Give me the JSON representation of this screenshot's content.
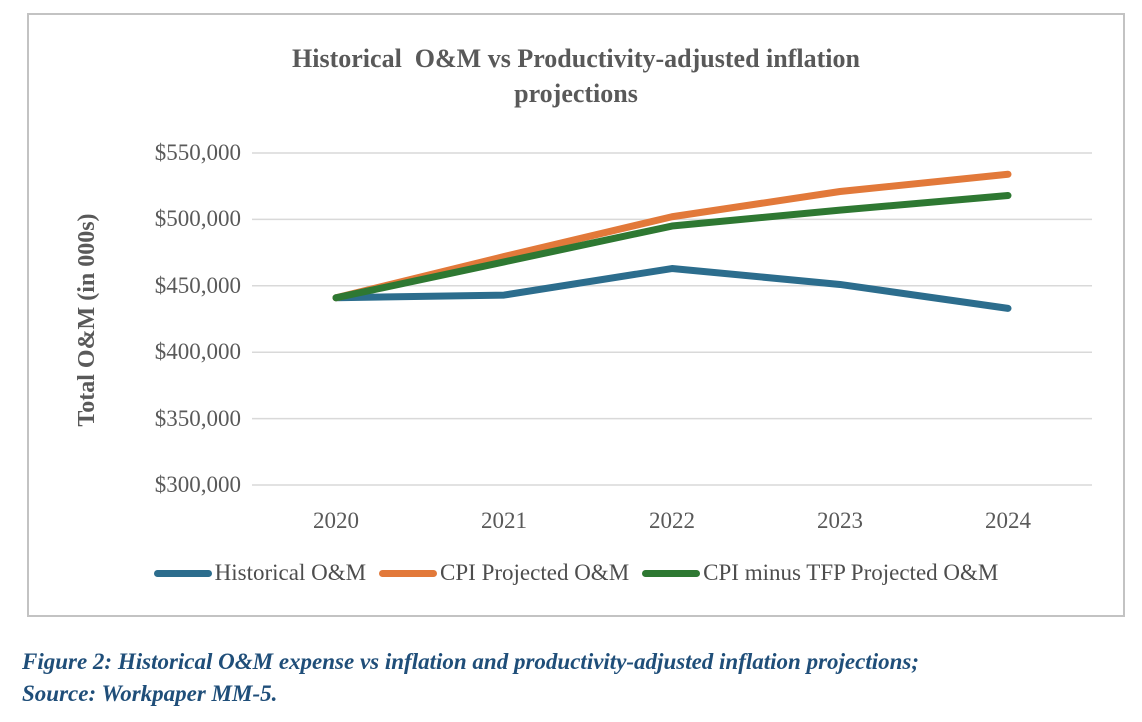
{
  "chart_data": {
    "type": "line",
    "title": "Historical  O&M vs Productivity-adjusted inflation\nprojections",
    "ylabel": "Total O&M (in 000s)",
    "x": [
      2020,
      2021,
      2022,
      2023,
      2024
    ],
    "series": [
      {
        "name": "Historical O&M",
        "color": "#2C6D8D",
        "values": [
          441000,
          443000,
          463000,
          451000,
          433000
        ]
      },
      {
        "name": "CPI Projected O&M",
        "color": "#E2793A",
        "values": [
          441000,
          472000,
          502000,
          521000,
          534000
        ]
      },
      {
        "name": "CPI minus TFP Projected O&M",
        "color": "#2E7832",
        "values": [
          441000,
          468000,
          495000,
          507000,
          518000
        ]
      }
    ],
    "y_ticks": [
      "$550,000",
      "$500,000",
      "$450,000",
      "$400,000",
      "$350,000",
      "$300,000"
    ],
    "ylim": [
      300000,
      550000
    ],
    "grid": true,
    "gridline_color": "#d9d9d9",
    "legend_position": "bottom"
  },
  "caption": {
    "text": "Figure 2: Historical O&M expense vs inflation and productivity-adjusted inflation projections;\nSource: Workpaper MM-5."
  }
}
